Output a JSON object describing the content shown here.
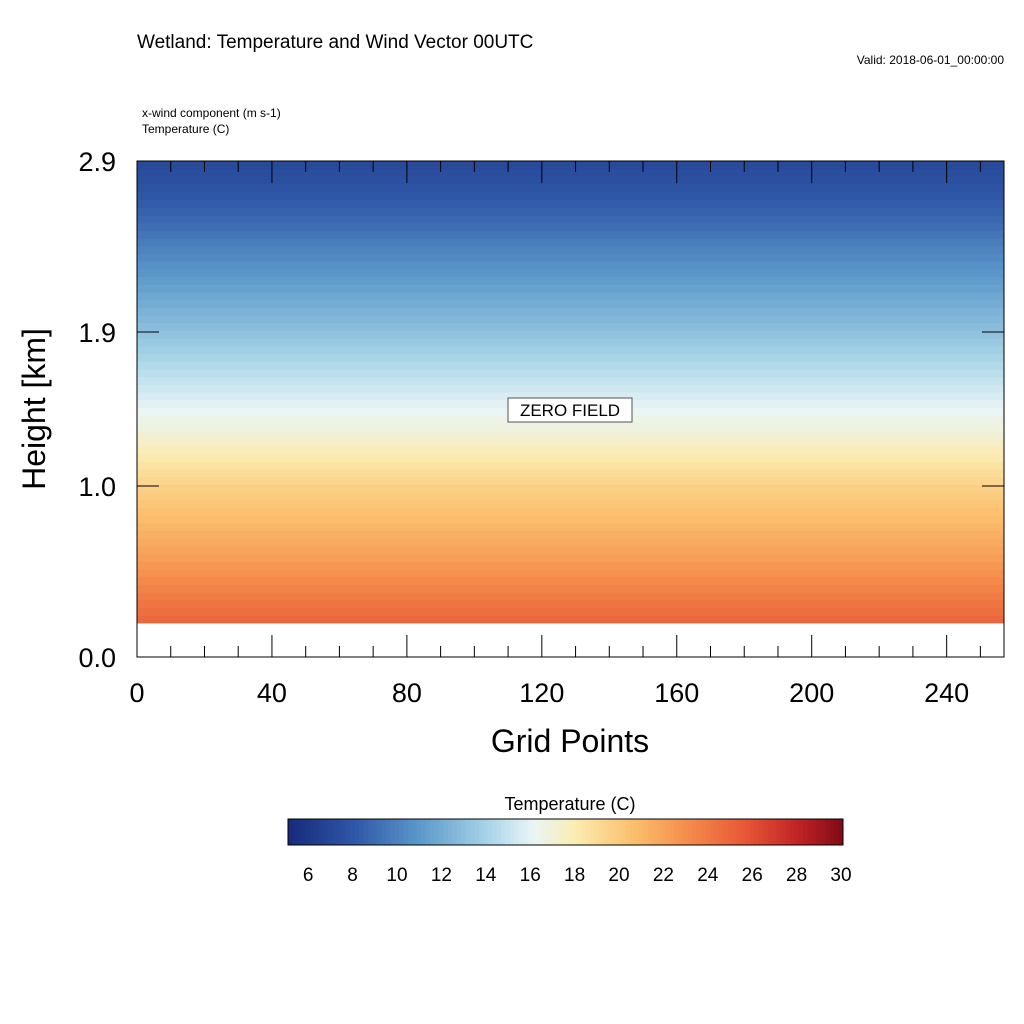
{
  "chart_data": {
    "type": "heatmap",
    "title": "Wetland: Temperature and Wind Vector   00UTC",
    "valid": "Valid: 2018-06-01_00:00:00",
    "field_labels": [
      "x-wind component   (m s-1)",
      "Temperature   (C)"
    ],
    "annotation": "ZERO FIELD",
    "xlabel": "Grid Points",
    "ylabel": "Height [km]",
    "xlim": [
      0,
      257
    ],
    "ylim": [
      0.0,
      2.9
    ],
    "x_ticks": [
      "0",
      "40",
      "80",
      "120",
      "160",
      "200",
      "240"
    ],
    "x_tick_values": [
      0,
      40,
      80,
      120,
      160,
      200,
      240
    ],
    "y_ticks": [
      "0.0",
      "1.0",
      "1.9",
      "2.9"
    ],
    "y_tick_values": [
      0.0,
      1.0,
      1.9,
      2.9
    ],
    "field_bottom_km": 0.2,
    "temperature_profile": [
      {
        "height_km": 0.2,
        "temp_c": 25.0
      },
      {
        "height_km": 0.6,
        "temp_c": 22.0
      },
      {
        "height_km": 1.0,
        "temp_c": 19.5
      },
      {
        "height_km": 1.3,
        "temp_c": 17.0
      },
      {
        "height_km": 1.6,
        "temp_c": 15.0
      },
      {
        "height_km": 1.9,
        "temp_c": 13.0
      },
      {
        "height_km": 2.3,
        "temp_c": 10.5
      },
      {
        "height_km": 2.6,
        "temp_c": 8.5
      },
      {
        "height_km": 2.9,
        "temp_c": 7.0
      }
    ],
    "colorbar": {
      "title": "Temperature  (C)",
      "min": 5,
      "max": 30,
      "labels": [
        "6",
        "8",
        "10",
        "12",
        "14",
        "16",
        "18",
        "20",
        "22",
        "24",
        "26",
        "28",
        "30"
      ],
      "label_values": [
        6,
        8,
        10,
        12,
        14,
        16,
        18,
        20,
        22,
        24,
        26,
        28,
        30
      ]
    },
    "colormap": [
      {
        "v": 5,
        "c": "#172a7a"
      },
      {
        "v": 8,
        "c": "#2f57a7"
      },
      {
        "v": 11,
        "c": "#5d9acb"
      },
      {
        "v": 14,
        "c": "#a8d4e7"
      },
      {
        "v": 16,
        "c": "#e9f5f7"
      },
      {
        "v": 18,
        "c": "#fbebb0"
      },
      {
        "v": 20.5,
        "c": "#fbc06e"
      },
      {
        "v": 23,
        "c": "#f58c4c"
      },
      {
        "v": 25.5,
        "c": "#e85937"
      },
      {
        "v": 28,
        "c": "#c02325"
      },
      {
        "v": 30,
        "c": "#800a16"
      }
    ]
  }
}
